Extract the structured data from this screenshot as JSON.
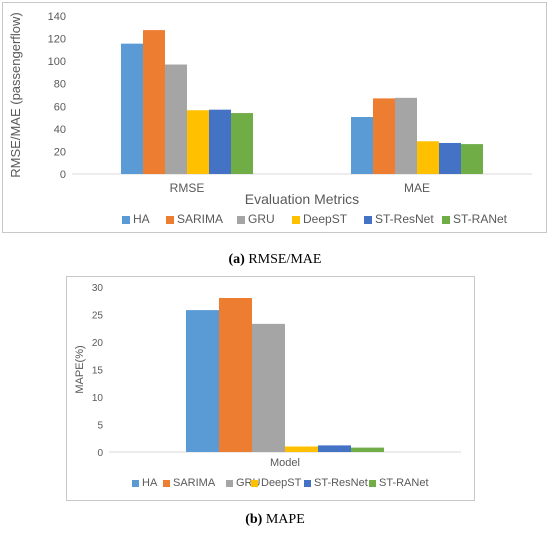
{
  "captions": [
    {
      "letter": "(a)",
      "text": "RMSE/MAE"
    },
    {
      "letter": "(b)",
      "text": "MAPE"
    }
  ],
  "chart_data": [
    {
      "type": "bar",
      "categories": [
        "RMSE",
        "MAE"
      ],
      "series": [
        {
          "name": "HA",
          "color": "#5b9bd5",
          "values": [
            115.5,
            50.5
          ]
        },
        {
          "name": "SARIMA",
          "color": "#ed7d31",
          "values": [
            127.5,
            67
          ]
        },
        {
          "name": "GRU",
          "color": "#a5a5a5",
          "values": [
            97,
            67.5
          ]
        },
        {
          "name": "DeepST",
          "color": "#ffc000",
          "values": [
            56.5,
            29
          ]
        },
        {
          "name": "ST-ResNet",
          "color": "#4472c4",
          "values": [
            57,
            27.5
          ]
        },
        {
          "name": "ST-RANet",
          "color": "#70ad47",
          "values": [
            54,
            26.5
          ]
        }
      ],
      "ylim": [
        0,
        140
      ],
      "yticks": [
        "0",
        "20",
        "40",
        "60",
        "80",
        "100",
        "120",
        "140"
      ],
      "xlabel": "Evaluation Metrics",
      "ylabel": "RMSE/MAE (passengerflow)",
      "grid": false,
      "legend": "bottom"
    },
    {
      "type": "bar",
      "categories": [
        "Model"
      ],
      "series": [
        {
          "name": "HA",
          "color": "#5b9bd5",
          "values": [
            25.8
          ]
        },
        {
          "name": "SARIMA",
          "color": "#ed7d31",
          "values": [
            28
          ]
        },
        {
          "name": "GRU",
          "color": "#a5a5a5",
          "values": [
            23.3
          ]
        },
        {
          "name": "DeepST",
          "color": "#ffc000",
          "values": [
            1.0
          ]
        },
        {
          "name": "ST-ResNet",
          "color": "#4472c4",
          "values": [
            1.2
          ]
        },
        {
          "name": "ST-RANet",
          "color": "#70ad47",
          "values": [
            0.8
          ]
        }
      ],
      "ylim": [
        0,
        30
      ],
      "yticks": [
        "0",
        "5",
        "10",
        "15",
        "20",
        "25",
        "30"
      ],
      "xlabel": "Model",
      "ylabel": "MAPE(%)",
      "grid": false,
      "legend": "bottom"
    }
  ]
}
